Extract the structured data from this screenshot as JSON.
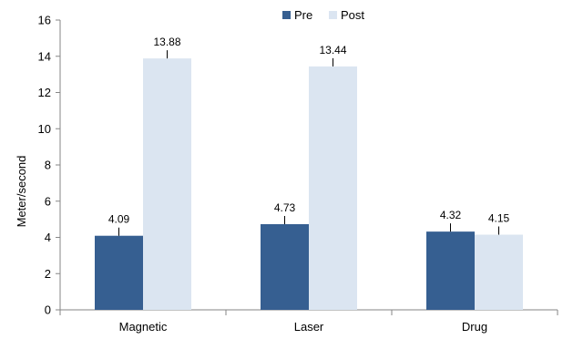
{
  "chart_data": {
    "type": "bar",
    "categories": [
      "Magnetic",
      "Laser",
      "Drug"
    ],
    "series": [
      {
        "name": "Pre",
        "values": [
          4.09,
          4.73,
          4.32
        ],
        "color": "#365f91"
      },
      {
        "name": "Post",
        "values": [
          13.88,
          13.44,
          4.15
        ],
        "color": "#dbe5f1"
      }
    ],
    "data_labels": [
      [
        "4.09",
        "4.73",
        "4.32"
      ],
      [
        "13.88",
        "13.44",
        "4.15"
      ]
    ],
    "ylabel": "Meter/second",
    "xlabel": "",
    "title": "",
    "ylim": [
      0,
      16
    ],
    "yticks": [
      "0",
      "2",
      "4",
      "6",
      "8",
      "10",
      "12",
      "14",
      "16"
    ],
    "legend_position": "top-center",
    "grid": false,
    "error_bars": true
  }
}
